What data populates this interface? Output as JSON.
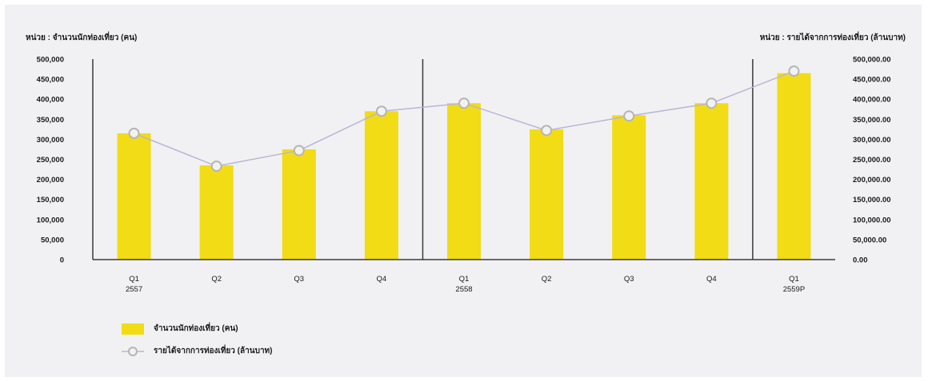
{
  "chart_data": {
    "type": "bar",
    "left_axis_title": "หน่วย : จำนวนนักท่องเที่ยว (คน)",
    "right_axis_title": "หน่วย : รายได้จากการท่องเที่ยว (ล้านบาท)",
    "categories": [
      {
        "quarter": "Q1",
        "year": "2557"
      },
      {
        "quarter": "Q2",
        "year": ""
      },
      {
        "quarter": "Q3",
        "year": ""
      },
      {
        "quarter": "Q4",
        "year": ""
      },
      {
        "quarter": "Q1",
        "year": "2558"
      },
      {
        "quarter": "Q2",
        "year": ""
      },
      {
        "quarter": "Q3",
        "year": ""
      },
      {
        "quarter": "Q4",
        "year": ""
      },
      {
        "quarter": "Q1",
        "year": "2559P"
      }
    ],
    "left_ticks": [
      "500,000",
      "450,000",
      "400,000",
      "350,000",
      "300,000",
      "250,000",
      "200,000",
      "150,000",
      "100,000",
      "50,000",
      "0"
    ],
    "right_ticks": [
      "500,000.00",
      "450,000.00",
      "400,000.00",
      "350,000.00",
      "300,000.00",
      "250,000.00",
      "200,000.00",
      "150,000.00",
      "100,000.00",
      "50,000.00",
      "0.00"
    ],
    "ylim_left": [
      0,
      500000
    ],
    "ylim_right": [
      0,
      500000
    ],
    "series": [
      {
        "name": "จำนวนนักท่องเที่ยว (คน)",
        "type": "bar",
        "axis": "left",
        "values": [
          315000,
          235000,
          275000,
          370000,
          390000,
          325000,
          360000,
          390000,
          465000
        ]
      },
      {
        "name": "รายได้จากการท่องเที่ยว (ล้านบาท)",
        "type": "line",
        "axis": "right",
        "values": [
          315000,
          233000,
          272000,
          370000,
          390000,
          322000,
          358000,
          390000,
          470000
        ]
      }
    ],
    "year_dividers_after": [
      3,
      7
    ],
    "colors": {
      "bar": "#f1dc16",
      "line": "#b9b5d6",
      "marker_fill": "#f2f2f2",
      "marker_stroke": "#b5b5b5",
      "axis": "#3a3a3a"
    },
    "legend_position": "bottom-left"
  }
}
